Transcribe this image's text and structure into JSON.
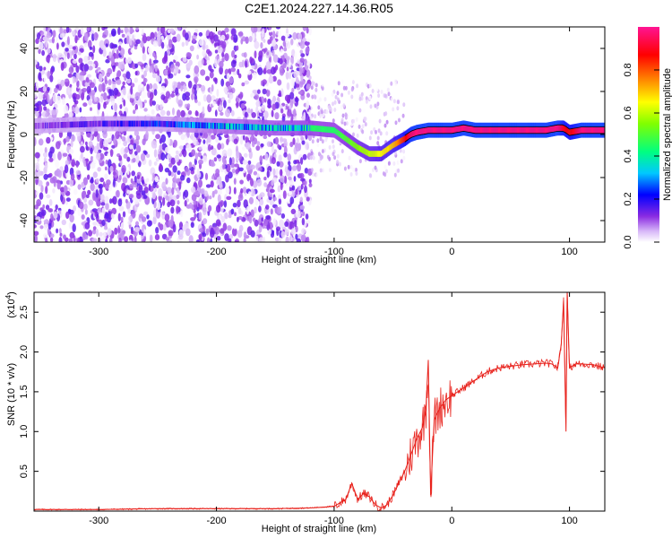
{
  "chart_data": [
    {
      "type": "heatmap",
      "title": "C2E1.2024.227.14.36.R05",
      "xlabel": "Height of straight line (km)",
      "ylabel": "Frequency (Hz)",
      "xlim": [
        -355,
        130
      ],
      "ylim": [
        -50,
        50
      ],
      "xticks": [
        -300,
        -200,
        -100,
        0,
        100
      ],
      "yticks": [
        -40,
        -20,
        0,
        20,
        40
      ],
      "grid": false,
      "ridge": {
        "x": [
          -355,
          -300,
          -250,
          -200,
          -150,
          -120,
          -100,
          -90,
          -80,
          -70,
          -60,
          -50,
          -40,
          -35,
          -30,
          -20,
          -10,
          0,
          10,
          20,
          40,
          60,
          80,
          90,
          95,
          100,
          110,
          130
        ],
        "freq": [
          4,
          5,
          5,
          4,
          3,
          3,
          2,
          -2,
          -6,
          -9,
          -9,
          -5,
          -2,
          0,
          1,
          2,
          2,
          2,
          3,
          2,
          2,
          2,
          2,
          3,
          3,
          1,
          2,
          2
        ],
        "amplitude": [
          0.15,
          0.18,
          0.25,
          0.35,
          0.4,
          0.45,
          0.45,
          0.5,
          0.55,
          0.6,
          0.65,
          0.7,
          0.85,
          0.95,
          0.98,
          0.98,
          0.98,
          0.98,
          0.98,
          0.98,
          0.98,
          0.98,
          0.98,
          0.98,
          0.9,
          0.85,
          0.98,
          0.98
        ]
      },
      "colorbar": {
        "label": "Normalized spectral amplitude",
        "ticks": [
          0.0,
          0.2,
          0.4,
          0.6,
          0.8
        ],
        "range": [
          0,
          1
        ],
        "colors": [
          "#ffffff",
          "#d8b8f8",
          "#8a2be2",
          "#0000ff",
          "#00c8ff",
          "#00ff80",
          "#80ff00",
          "#ffff00",
          "#ff8000",
          "#ff0000",
          "#ff1493"
        ]
      }
    },
    {
      "type": "line",
      "xlabel": "Height of straight line (km)",
      "ylabel": "SNR (10 * v/v)",
      "ylabel_multiplier": "(x10",
      "ylabel_multiplier_exp": "4",
      "ylabel_multiplier_close": ")",
      "xlim": [
        -355,
        130
      ],
      "ylim": [
        0,
        2.75
      ],
      "xticks": [
        -300,
        -200,
        -100,
        0,
        100
      ],
      "yticks": [
        0.5,
        1.0,
        1.5,
        2.0,
        2.5
      ],
      "ytick_labels": [
        "0.5",
        "1.0",
        "1.5",
        "2.0",
        "2.5"
      ],
      "color": "#e8221c",
      "x": [
        -355,
        -300,
        -250,
        -200,
        -150,
        -120,
        -100,
        -90,
        -85,
        -80,
        -75,
        -70,
        -65,
        -60,
        -55,
        -50,
        -45,
        -40,
        -35,
        -30,
        -25,
        -22,
        -20,
        -18,
        -15,
        -10,
        -5,
        0,
        5,
        10,
        20,
        30,
        40,
        50,
        60,
        70,
        80,
        85,
        90,
        93,
        95,
        97,
        98,
        100,
        105,
        110,
        120,
        130
      ],
      "y": [
        0.02,
        0.02,
        0.03,
        0.03,
        0.03,
        0.04,
        0.06,
        0.15,
        0.35,
        0.15,
        0.22,
        0.18,
        0.08,
        0.04,
        0.08,
        0.2,
        0.35,
        0.5,
        0.7,
        0.9,
        1.05,
        1.3,
        1.9,
        0.2,
        1.15,
        1.3,
        1.4,
        1.45,
        1.5,
        1.55,
        1.65,
        1.75,
        1.8,
        1.82,
        1.84,
        1.85,
        1.86,
        1.85,
        1.8,
        2.1,
        2.65,
        1.0,
        2.75,
        1.8,
        1.85,
        1.85,
        1.84,
        1.8
      ]
    }
  ]
}
